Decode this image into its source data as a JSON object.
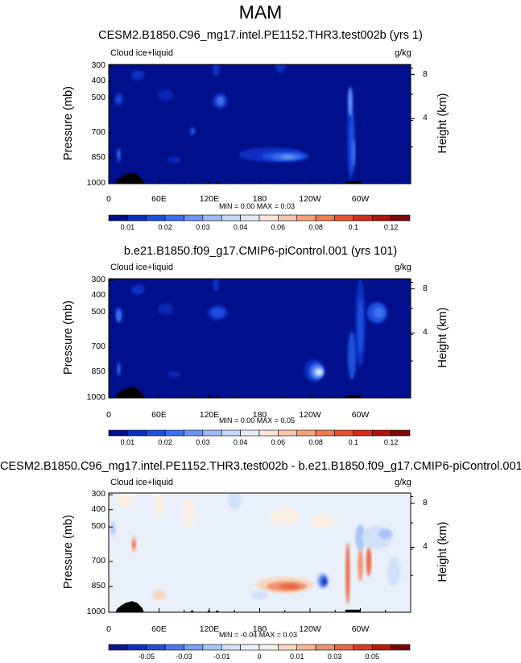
{
  "main_title": "MAM",
  "chart_data": [
    {
      "type": "heatmap",
      "title": "CESM2.B1850.C96_mg17.intel.PE1152.THR3.test002b (yrs 1)",
      "field_label": "Cloud ice+liquid",
      "units": "g/kg",
      "ylabel": "Pressure (mb)",
      "ylabel_right": "Height (km)",
      "yticks": [
        "300",
        "400",
        "500",
        "700",
        "850",
        "1000"
      ],
      "yticks_right": [
        "8",
        "4"
      ],
      "xticks": [
        "0",
        "60E",
        "120E",
        "180",
        "120W",
        "60W"
      ],
      "min_max_text": "MIN =   0.00  MAX =   0.03",
      "min": 0.0,
      "max": 0.03,
      "colorbar": {
        "labels": [
          "0.01",
          "0.02",
          "0.03",
          "0.04",
          "0.06",
          "0.08",
          "0.1",
          "0.12"
        ],
        "colors": [
          "#00108c",
          "#0a2fc0",
          "#1c4fe0",
          "#3b6fef",
          "#6b94f5",
          "#9dbaf7",
          "#c6d7f7",
          "#e2ebf7",
          "#f8e4d8",
          "#f8c4aa",
          "#f5a07c",
          "#f07a52",
          "#e8532e",
          "#d42c18",
          "#b01208",
          "#7e0606"
        ]
      },
      "features": [
        {
          "lon": 210,
          "p": 850,
          "value": 0.025,
          "desc": "peak"
        },
        {
          "lon": 295,
          "p": 600,
          "value": 0.02,
          "desc": "tower"
        }
      ]
    },
    {
      "type": "heatmap",
      "title": "b.e21.B1850.f09_g17.CMIP6-piControl.001 (yrs 101)",
      "field_label": "Cloud ice+liquid",
      "units": "g/kg",
      "ylabel": "Pressure (mb)",
      "ylabel_right": "Height (km)",
      "yticks": [
        "300",
        "400",
        "500",
        "700",
        "850",
        "1000"
      ],
      "yticks_right": [
        "8",
        "4"
      ],
      "xticks": [
        "0",
        "60E",
        "120E",
        "180",
        "120W",
        "60W"
      ],
      "min_max_text": "MIN =   0.00  MAX =   0.05",
      "min": 0.0,
      "max": 0.05,
      "colorbar": {
        "labels": [
          "0.01",
          "0.02",
          "0.03",
          "0.04",
          "0.06",
          "0.08",
          "0.1",
          "0.12"
        ],
        "colors": [
          "#00108c",
          "#0a2fc0",
          "#1c4fe0",
          "#3b6fef",
          "#6b94f5",
          "#9dbaf7",
          "#c6d7f7",
          "#e2ebf7",
          "#f8e4d8",
          "#f8c4aa",
          "#f5a07c",
          "#f07a52",
          "#e8532e",
          "#d42c18",
          "#b01208",
          "#7e0606"
        ]
      },
      "features": [
        {
          "lon": 250,
          "p": 850,
          "value": 0.05,
          "desc": "peak"
        },
        {
          "lon": 300,
          "p": 550,
          "value": 0.03,
          "desc": "tower"
        }
      ]
    },
    {
      "type": "heatmap",
      "title": "CESM2.B1850.C96_mg17.intel.PE1152.THR3.test002b - b.e21.B1850.f09_g17.CMIP6-piControl.001",
      "field_label": "Cloud ice+liquid",
      "units": "g/kg",
      "ylabel": "Pressure (mb)",
      "ylabel_right": "Height (km)",
      "yticks": [
        "300",
        "400",
        "500",
        "700",
        "850",
        "1000"
      ],
      "yticks_right": [
        "8",
        "4"
      ],
      "xticks": [
        "0",
        "60E",
        "120E",
        "180",
        "120W",
        "60W"
      ],
      "min_max_text": "MIN =  -0.04  MAX =   0.03",
      "min": -0.04,
      "max": 0.03,
      "colorbar": {
        "labels": [
          "-0.05",
          "-0.03",
          "-0.01",
          "0",
          "0.01",
          "0.03",
          "0.05"
        ],
        "colors": [
          "#08188c",
          "#1430b8",
          "#2850d8",
          "#4a78ec",
          "#78a0f4",
          "#a8c4f8",
          "#d0e0f8",
          "#eaf0fa",
          "#fbeee4",
          "#f8d6c0",
          "#f4b596",
          "#f0906c",
          "#e86844",
          "#d83e22",
          "#b81c0c",
          "#800404"
        ]
      },
      "features": [
        {
          "lon": 210,
          "p": 850,
          "value": 0.03,
          "desc": "positive max"
        },
        {
          "lon": 250,
          "p": 820,
          "value": -0.04,
          "desc": "negative min"
        }
      ]
    }
  ]
}
